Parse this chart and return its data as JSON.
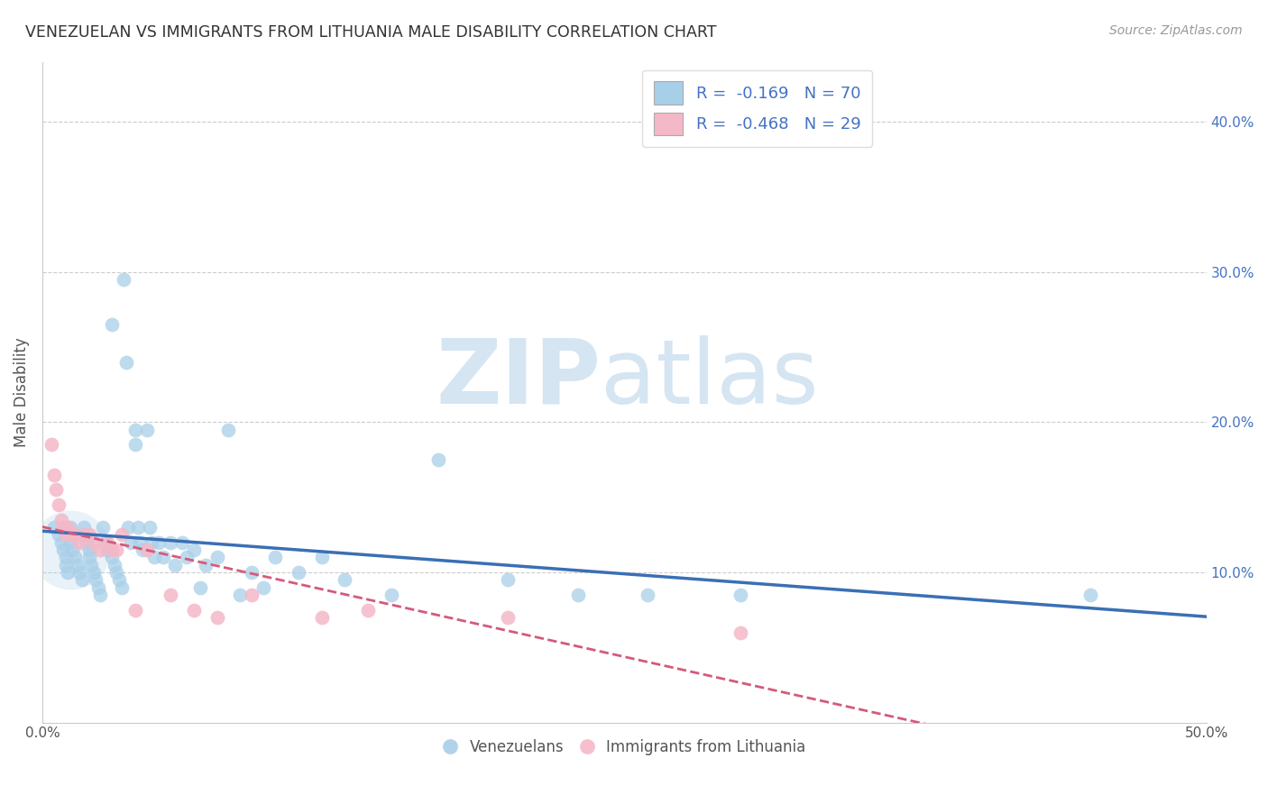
{
  "title": "VENEZUELAN VS IMMIGRANTS FROM LITHUANIA MALE DISABILITY CORRELATION CHART",
  "source": "Source: ZipAtlas.com",
  "ylabel": "Male Disability",
  "xlim": [
    0.0,
    0.5
  ],
  "ylim": [
    0.0,
    0.44
  ],
  "xticks": [
    0.0,
    0.1,
    0.2,
    0.3,
    0.4,
    0.5
  ],
  "xticklabels": [
    "0.0%",
    "",
    "",
    "",
    "",
    "50.0%"
  ],
  "yticks_right": [
    0.1,
    0.2,
    0.3,
    0.4
  ],
  "yticklabels_right": [
    "10.0%",
    "20.0%",
    "30.0%",
    "40.0%"
  ],
  "legend1_label": "R =  -0.169   N = 70",
  "legend2_label": "R =  -0.468   N = 29",
  "legend_venezuelans": "Venezuelans",
  "legend_lithuania": "Immigrants from Lithuania",
  "blue_color": "#a8cfe8",
  "pink_color": "#f4b8c8",
  "blue_line_color": "#3a6fb5",
  "pink_line_color": "#d45a7a",
  "watermark_color": "#d5e5f2",
  "venezuelan_x": [
    0.005,
    0.007,
    0.008,
    0.009,
    0.01,
    0.01,
    0.011,
    0.012,
    0.012,
    0.013,
    0.014,
    0.015,
    0.016,
    0.017,
    0.018,
    0.019,
    0.02,
    0.02,
    0.021,
    0.022,
    0.023,
    0.024,
    0.025,
    0.026,
    0.027,
    0.028,
    0.03,
    0.03,
    0.031,
    0.032,
    0.033,
    0.034,
    0.035,
    0.036,
    0.037,
    0.038,
    0.04,
    0.04,
    0.041,
    0.042,
    0.043,
    0.045,
    0.046,
    0.047,
    0.048,
    0.05,
    0.052,
    0.055,
    0.057,
    0.06,
    0.062,
    0.065,
    0.068,
    0.07,
    0.075,
    0.08,
    0.085,
    0.09,
    0.095,
    0.1,
    0.11,
    0.12,
    0.13,
    0.15,
    0.17,
    0.2,
    0.23,
    0.26,
    0.3,
    0.45
  ],
  "venezuelan_y": [
    0.13,
    0.125,
    0.12,
    0.115,
    0.11,
    0.105,
    0.1,
    0.13,
    0.12,
    0.115,
    0.11,
    0.105,
    0.1,
    0.095,
    0.13,
    0.12,
    0.115,
    0.11,
    0.105,
    0.1,
    0.095,
    0.09,
    0.085,
    0.13,
    0.12,
    0.115,
    0.11,
    0.265,
    0.105,
    0.1,
    0.095,
    0.09,
    0.295,
    0.24,
    0.13,
    0.12,
    0.195,
    0.185,
    0.13,
    0.12,
    0.115,
    0.195,
    0.13,
    0.12,
    0.11,
    0.12,
    0.11,
    0.12,
    0.105,
    0.12,
    0.11,
    0.115,
    0.09,
    0.105,
    0.11,
    0.195,
    0.085,
    0.1,
    0.09,
    0.11,
    0.1,
    0.11,
    0.095,
    0.085,
    0.175,
    0.095,
    0.085,
    0.085,
    0.085,
    0.085
  ],
  "lithuania_x": [
    0.004,
    0.005,
    0.006,
    0.007,
    0.008,
    0.009,
    0.01,
    0.011,
    0.012,
    0.014,
    0.016,
    0.018,
    0.02,
    0.022,
    0.025,
    0.028,
    0.03,
    0.032,
    0.034,
    0.04,
    0.045,
    0.055,
    0.065,
    0.075,
    0.09,
    0.12,
    0.14,
    0.2,
    0.3
  ],
  "lithuania_y": [
    0.185,
    0.165,
    0.155,
    0.145,
    0.135,
    0.13,
    0.125,
    0.13,
    0.125,
    0.125,
    0.12,
    0.125,
    0.125,
    0.12,
    0.115,
    0.12,
    0.115,
    0.115,
    0.125,
    0.075,
    0.115,
    0.085,
    0.075,
    0.07,
    0.085,
    0.07,
    0.075,
    0.07,
    0.06
  ]
}
